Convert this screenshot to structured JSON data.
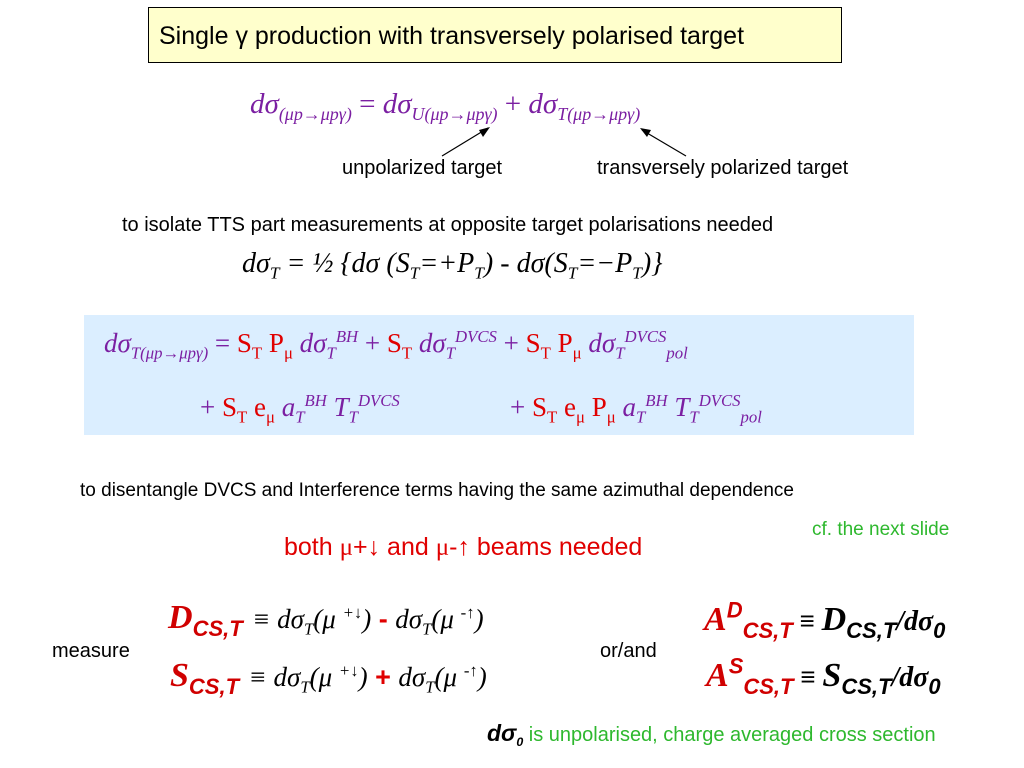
{
  "title": "Single γ production with transversely polarised target",
  "eq1": {
    "lhs": "dσ",
    "lhs_sub": "(μp→μpγ)",
    "eq": " = ",
    "t1": "dσ",
    "t1_sub": "U(μp→μpγ)",
    "plus": " + ",
    "t2": "dσ",
    "t2_sub": "T(μp→μpγ)"
  },
  "labels": {
    "unpolarized": "unpolarized target",
    "transversely": "transversely polarized target"
  },
  "text_isolate": "to isolate TTS part measurements at opposite target polarisations needed",
  "eq2": {
    "a": "dσ",
    "a_sub": "T",
    "b": " = ½ {dσ (S",
    "b_sub": "T",
    "c": "=+P",
    "c_sub": "T",
    "d": ")  - dσ(S",
    "d_sub": "T",
    "e": "=−P",
    "e_sub": "T",
    "f": ")}"
  },
  "box": {
    "r1": {
      "lhs": "dσ",
      "lhs_sub": "T(μp→μpγ)",
      "eq": " = ",
      "s1": "S",
      "s1_sub": "T",
      "p1": " P",
      "p1_sub": "μ",
      "d1": " dσ",
      "d1_sub": "T",
      "d1_sup": "BH",
      "plus1": "  + ",
      "s2": "S",
      "s2_sub": "T",
      "d2": " dσ",
      "d2_sub": "T",
      "d2_sup": "DVCS",
      "plus2": "  + ",
      "s3": "S",
      "s3_sub": "T",
      "p3": " P",
      "p3_sub": "μ",
      "d3": " dσ",
      "d3_sub": "T",
      "d3_sup": "DVCS",
      "d3_sub2": "pol"
    },
    "r2": {
      "plus1": "+ ",
      "s1": "S",
      "s1_sub": "T",
      "e1": " e",
      "e1_sub": "μ",
      "a1": " a",
      "a1_sub": "T",
      "a1_sup": "BH",
      "t1": " T",
      "t1_sub": "T",
      "t1_sup": "DVCS",
      "plus2": "+ ",
      "s2": "S",
      "s2_sub": "T",
      "e2": " e",
      "e2_sub": "μ",
      "p2": " P",
      "p2_sub": "μ",
      "a2": " a",
      "a2_sub": "T",
      "a2_sup": "BH",
      "t2": " T",
      "t2_sub": "T",
      "t2_sup": "DVCS",
      "t2_sub2": "pol"
    }
  },
  "text_disentangle": "to disentangle DVCS and Interference terms having the same azimuthal dependence",
  "cf_next": "cf. the next slide",
  "beams": {
    "a": "both ",
    "mu1": "μ",
    "b": "+↓  and ",
    "mu2": "μ",
    "c": "-↑ beams needed"
  },
  "measure_label": "measure",
  "or_and": "or/and",
  "D": {
    "sym": "D",
    "sub": "CS,T",
    "equiv": "≡ ",
    "d1": "dσ",
    "d1_sub": "T",
    "m1": "(μ ",
    "m1_sup": "+↓",
    "m1_end": ")",
    "op": " - ",
    "d2": "dσ",
    "d2_sub": "T",
    "m2": "(μ ",
    "m2_sup": "-↑",
    "m2_end": ")"
  },
  "S": {
    "sym": "S",
    "sub": "CS,T",
    "equiv": "≡ ",
    "d1": "dσ",
    "d1_sub": "T",
    "m1": "(μ ",
    "m1_sup": "+↓",
    "m1_end": ")",
    "op": " + ",
    "d2": "dσ",
    "d2_sub": "T",
    "m2": "(μ ",
    "m2_sup": "-↑",
    "m2_end": ")"
  },
  "AD": {
    "sym": "A",
    "sup": "D",
    "sub": "CS,T",
    "equiv": " ≡ ",
    "rhs": "D",
    "rhs_sub": "CS,T",
    "slash": "/dσ",
    "zero": "0"
  },
  "AS": {
    "sym": "A",
    "sup": "S",
    "sub": "CS,T",
    "equiv": " ≡ ",
    "rhs": "S",
    "rhs_sub": "CS,T",
    "slash": "/dσ",
    "zero": "0"
  },
  "footnote": {
    "sym": "dσ",
    "sym_sub": "0",
    "text": " is unpolarised, charge averaged cross section"
  }
}
